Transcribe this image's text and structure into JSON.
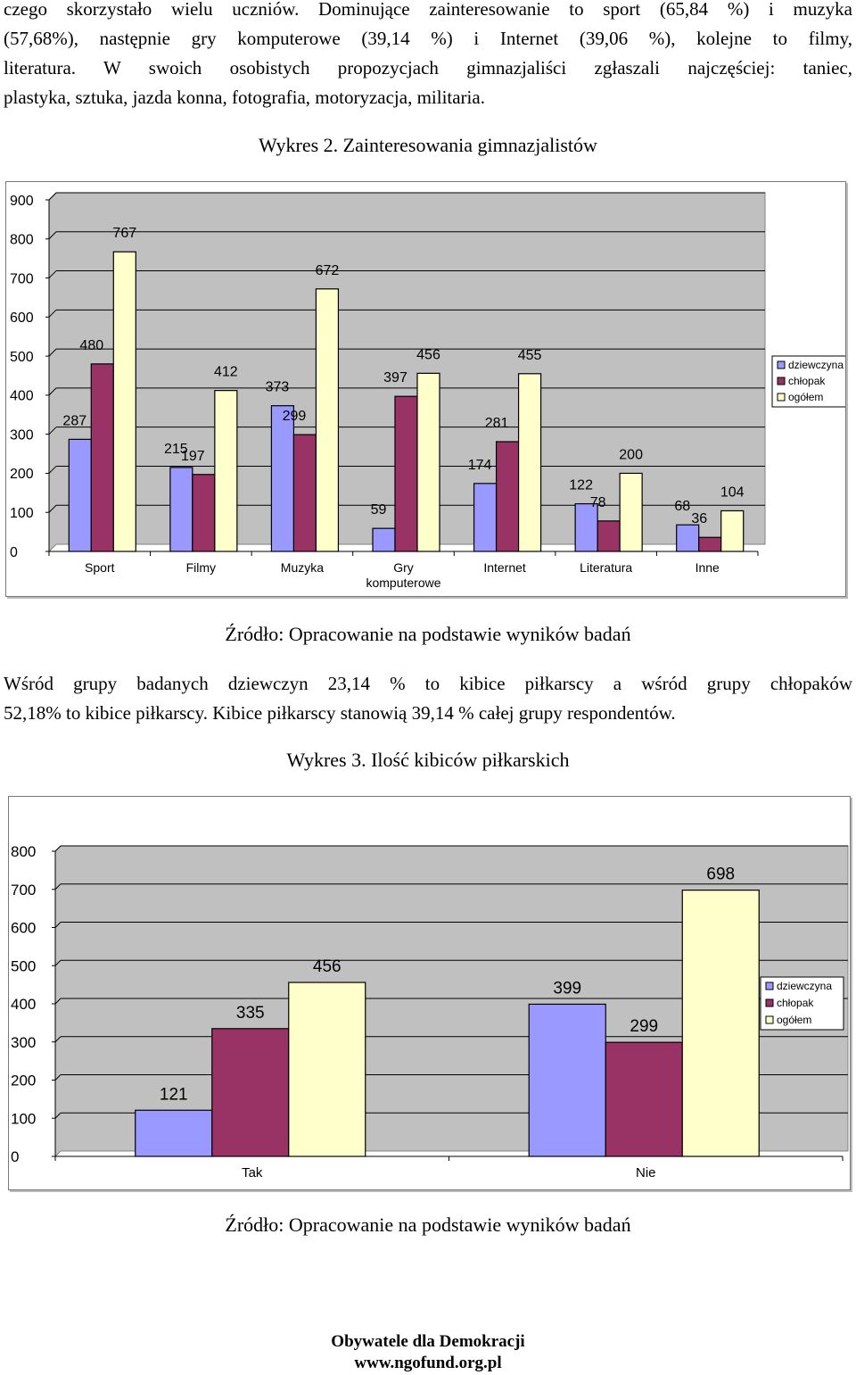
{
  "intro_paragraph": {
    "lines": [
      "czego skorzystało wielu uczniów. Dominujące zainteresowanie to sport (65,84 %) i muzyka",
      "(57,68%), następnie gry komputerowe (39,14 %) i Internet (39,06 %), kolejne to filmy,",
      "literatura. W swoich osobistych propozycjach gimnazjaliści zgłaszali najczęściej: taniec,",
      "plastyka, sztuka, jazda konna, fotografia, motoryzacja, militaria."
    ]
  },
  "chart1": {
    "caption": "Wykres 2. Zainteresowania gimnazjalistów",
    "source": "Źródło: Opracowanie na podstawie wyników badań"
  },
  "middle_paragraph": {
    "lines": [
      "Wśród grupy badanych dziewczyn 23,14 % to kibice piłkarscy a wśród grupy chłopaków",
      "52,18% to kibice piłkarscy. Kibice piłkarscy stanowią 39,14 %  całej grupy respondentów."
    ]
  },
  "chart2": {
    "caption": "Wykres 3. Ilość kibiców piłkarskich",
    "source": "Źródło: Opracowanie na podstawie wyników badań"
  },
  "footer": {
    "org": "Obywatele dla Demokracji",
    "url": "www.ngofund.org.pl"
  },
  "colors": {
    "dziewczyna": "#9999FF",
    "chlopak": "#993366",
    "ogolem": "#FFFFCC",
    "plot_bg": "#C0C0C0"
  },
  "chart_data": [
    {
      "type": "bar",
      "title": "Wykres 2. Zainteresowania gimnazjalistów",
      "categories": [
        "Sport",
        "Filmy",
        "Muzyka",
        "Gry komputerowe",
        "Internet",
        "Literatura",
        "Inne"
      ],
      "category_lines": [
        [
          "Sport"
        ],
        [
          "Filmy"
        ],
        [
          "Muzyka"
        ],
        [
          "Gry",
          "komputerowe"
        ],
        [
          "Internet"
        ],
        [
          "Literatura"
        ],
        [
          "Inne"
        ]
      ],
      "series": [
        {
          "name": "dziewczyna",
          "values": [
            287,
            215,
            373,
            59,
            174,
            122,
            68
          ]
        },
        {
          "name": "chłopak",
          "values": [
            480,
            197,
            299,
            397,
            281,
            78,
            36
          ]
        },
        {
          "name": "ogółem",
          "values": [
            767,
            412,
            672,
            456,
            455,
            200,
            104
          ]
        }
      ],
      "ylim": [
        0,
        900
      ],
      "yticks": [
        0,
        100,
        200,
        300,
        400,
        500,
        600,
        700,
        800,
        900
      ],
      "grid": true,
      "legend": "right"
    },
    {
      "type": "bar",
      "title": "Wykres 3. Ilość kibiców piłkarskich",
      "categories": [
        "Tak",
        "Nie"
      ],
      "category_lines": [
        [
          "Tak"
        ],
        [
          "Nie"
        ]
      ],
      "series": [
        {
          "name": "dziewczyna",
          "values": [
            121,
            399
          ]
        },
        {
          "name": "chłopak",
          "values": [
            335,
            299
          ]
        },
        {
          "name": "ogółem",
          "values": [
            456,
            698
          ]
        }
      ],
      "ylim": [
        0,
        800
      ],
      "yticks": [
        0,
        100,
        200,
        300,
        400,
        500,
        600,
        700,
        800
      ],
      "grid": true,
      "legend": "right"
    }
  ]
}
